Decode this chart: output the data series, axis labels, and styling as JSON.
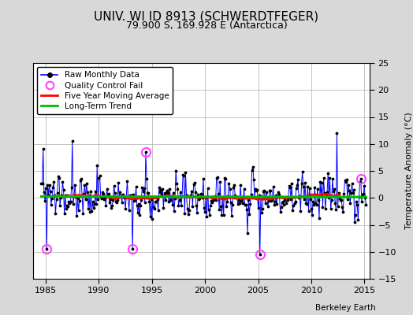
{
  "title": "UNIV. WI ID 8913 (SCHWERDTFEGER)",
  "subtitle": "79.900 S, 169.928 E (Antarctica)",
  "credit": "Berkeley Earth",
  "ylabel": "Temperature Anomaly (°C)",
  "xlim": [
    1983.8,
    2015.5
  ],
  "ylim": [
    -15,
    25
  ],
  "yticks": [
    -15,
    -10,
    -5,
    0,
    5,
    10,
    15,
    20,
    25
  ],
  "xticks": [
    1985,
    1990,
    1995,
    2000,
    2005,
    2010,
    2015
  ],
  "bg_color": "#d8d8d8",
  "plot_bg_color": "#ffffff",
  "line_color": "#0000ff",
  "marker_color": "#000000",
  "ma_color": "#ff0000",
  "trend_color": "#00bb00",
  "qc_color": "#ff44ff",
  "seed": 137
}
